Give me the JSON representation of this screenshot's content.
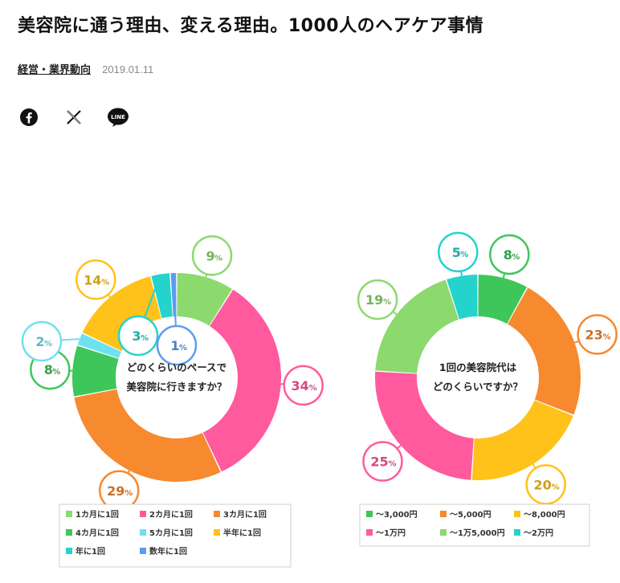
{
  "article": {
    "title": "美容院に通う理由、変える理由。1000人のヘアケア事情",
    "category": "経営・業界動向",
    "date": "2019.01.11"
  },
  "share": {
    "icons": [
      "facebook-icon",
      "x-icon",
      "line-icon"
    ],
    "line_label": "LINE"
  },
  "chart_data": [
    {
      "type": "pie",
      "variant": "donut",
      "center_label": [
        "どのくらいのペースで",
        "美容院に行きますか？"
      ],
      "categories": [
        "1カ月に1回",
        "2カ月に1回",
        "3カ月に1回",
        "4カ月に1回",
        "5カ月に1回",
        "半年に1回",
        "年に1回",
        "数年に1回"
      ],
      "values": [
        9,
        34,
        29,
        8,
        2,
        14,
        3,
        1
      ],
      "colors": [
        "#8cd96e",
        "#ff5a9e",
        "#f7892f",
        "#3fc65a",
        "#6fe0f0",
        "#ffc21a",
        "#24d3cb",
        "#5b9cf2"
      ],
      "legend": "bottom"
    },
    {
      "type": "pie",
      "variant": "donut",
      "center_label": [
        "1回の美容院代は",
        "どのくらいですか？"
      ],
      "categories": [
        "〜3,000円",
        "〜5,000円",
        "〜8,000円",
        "〜1万円",
        "〜1万5,000円",
        "〜2万円"
      ],
      "values": [
        8,
        23,
        20,
        25,
        19,
        5
      ],
      "colors": [
        "#3fc65a",
        "#f7892f",
        "#ffc21a",
        "#ff5a9e",
        "#8cd96e",
        "#24d3cb"
      ],
      "legend": "bottom"
    }
  ]
}
